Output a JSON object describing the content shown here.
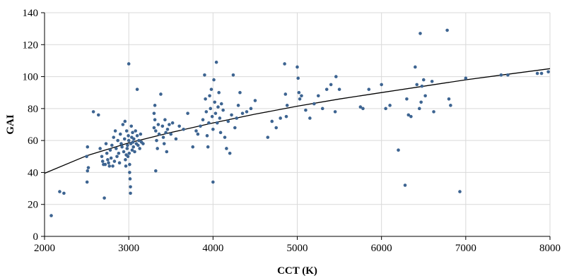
{
  "chart_data": {
    "type": "scatter",
    "xlabel": "CCT (K)",
    "ylabel": "GAI",
    "xlim": [
      2000,
      8000
    ],
    "ylim": [
      0,
      140
    ],
    "xticks": [
      2000,
      3000,
      4000,
      5000,
      6000,
      7000,
      8000
    ],
    "yticks": [
      0,
      20,
      40,
      60,
      80,
      100,
      120,
      140
    ],
    "grid": true,
    "legend": "none",
    "colors": {
      "points": "#3d6491",
      "trendline": "#000000",
      "grid": "#d9d9d9"
    },
    "trendline": {
      "type": "curve",
      "x": [
        2000,
        2500,
        3000,
        3500,
        4000,
        4500,
        5000,
        5500,
        6000,
        6500,
        7000,
        7500,
        8000
      ],
      "y": [
        39.5,
        50.5,
        58.5,
        65,
        71,
        76.5,
        81.5,
        86,
        90,
        94,
        98,
        101.5,
        105
      ]
    },
    "series": [
      {
        "points": [
          [
            2080,
            13
          ],
          [
            2180,
            28
          ],
          [
            2230,
            27
          ],
          [
            2500,
            50
          ],
          [
            2510,
            56
          ],
          [
            2520,
            43
          ],
          [
            2510,
            41
          ],
          [
            2505,
            34
          ],
          [
            2580,
            78
          ],
          [
            2640,
            76
          ],
          [
            2660,
            55
          ],
          [
            2680,
            50
          ],
          [
            2690,
            47
          ],
          [
            2700,
            45
          ],
          [
            2710,
            24
          ],
          [
            2720,
            45
          ],
          [
            2730,
            58
          ],
          [
            2740,
            52
          ],
          [
            2750,
            48
          ],
          [
            2760,
            46
          ],
          [
            2770,
            44
          ],
          [
            2780,
            54
          ],
          [
            2790,
            49
          ],
          [
            2800,
            57
          ],
          [
            2810,
            44
          ],
          [
            2820,
            62
          ],
          [
            2830,
            47
          ],
          [
            2840,
            66
          ],
          [
            2850,
            55
          ],
          [
            2860,
            50
          ],
          [
            2870,
            60
          ],
          [
            2880,
            52
          ],
          [
            2890,
            46
          ],
          [
            2900,
            64
          ],
          [
            2910,
            58
          ],
          [
            2920,
            56
          ],
          [
            2930,
            70
          ],
          [
            2940,
            53
          ],
          [
            2950,
            61
          ],
          [
            2955,
            72
          ],
          [
            2960,
            48
          ],
          [
            2965,
            44
          ],
          [
            2970,
            51
          ],
          [
            2975,
            66
          ],
          [
            2980,
            55
          ],
          [
            2985,
            57
          ],
          [
            2990,
            50
          ],
          [
            2995,
            63
          ],
          [
            3000,
            108
          ],
          [
            3000,
            60
          ],
          [
            3005,
            52
          ],
          [
            3010,
            45
          ],
          [
            3010,
            40
          ],
          [
            3015,
            36
          ],
          [
            3020,
            27
          ],
          [
            3020,
            31
          ],
          [
            3025,
            58
          ],
          [
            3030,
            69
          ],
          [
            3035,
            62
          ],
          [
            3040,
            54
          ],
          [
            3045,
            65
          ],
          [
            3050,
            59
          ],
          [
            3055,
            56
          ],
          [
            3060,
            61
          ],
          [
            3070,
            53
          ],
          [
            3080,
            66
          ],
          [
            3090,
            58
          ],
          [
            3100,
            63
          ],
          [
            3100,
            92
          ],
          [
            3110,
            57
          ],
          [
            3120,
            60
          ],
          [
            3130,
            55
          ],
          [
            3140,
            64
          ],
          [
            3150,
            59
          ],
          [
            3170,
            58
          ],
          [
            3300,
            68
          ],
          [
            3300,
            77
          ],
          [
            3310,
            82
          ],
          [
            3310,
            73
          ],
          [
            3320,
            66
          ],
          [
            3320,
            41
          ],
          [
            3330,
            60
          ],
          [
            3340,
            55
          ],
          [
            3350,
            70
          ],
          [
            3360,
            64
          ],
          [
            3380,
            89
          ],
          [
            3400,
            69
          ],
          [
            3410,
            62
          ],
          [
            3420,
            58
          ],
          [
            3430,
            73
          ],
          [
            3440,
            65
          ],
          [
            3450,
            53
          ],
          [
            3460,
            67
          ],
          [
            3480,
            70
          ],
          [
            3500,
            64
          ],
          [
            3520,
            71
          ],
          [
            3560,
            61
          ],
          [
            3600,
            69
          ],
          [
            3650,
            67
          ],
          [
            3700,
            77
          ],
          [
            3760,
            56
          ],
          [
            3800,
            66
          ],
          [
            3820,
            64
          ],
          [
            3850,
            69
          ],
          [
            3880,
            73
          ],
          [
            3900,
            101
          ],
          [
            3910,
            86
          ],
          [
            3920,
            78
          ],
          [
            3930,
            63
          ],
          [
            3940,
            56
          ],
          [
            3950,
            71
          ],
          [
            3960,
            88
          ],
          [
            3970,
            80
          ],
          [
            3980,
            92
          ],
          [
            3990,
            75
          ],
          [
            4000,
            67
          ],
          [
            4000,
            34
          ],
          [
            4010,
            98
          ],
          [
            4020,
            84
          ],
          [
            4030,
            77
          ],
          [
            4040,
            109
          ],
          [
            4050,
            71
          ],
          [
            4060,
            81
          ],
          [
            4070,
            90
          ],
          [
            4080,
            74
          ],
          [
            4090,
            65
          ],
          [
            4100,
            83
          ],
          [
            4120,
            79
          ],
          [
            4140,
            62
          ],
          [
            4160,
            55
          ],
          [
            4180,
            72
          ],
          [
            4200,
            52
          ],
          [
            4220,
            76
          ],
          [
            4240,
            101
          ],
          [
            4260,
            68
          ],
          [
            4280,
            74
          ],
          [
            4300,
            82
          ],
          [
            4320,
            90
          ],
          [
            4350,
            77
          ],
          [
            4400,
            78
          ],
          [
            4450,
            80
          ],
          [
            4500,
            85
          ],
          [
            4650,
            62
          ],
          [
            4700,
            72
          ],
          [
            4750,
            68
          ],
          [
            4800,
            74
          ],
          [
            4850,
            108
          ],
          [
            4860,
            89
          ],
          [
            4870,
            75
          ],
          [
            4880,
            82
          ],
          [
            5000,
            106
          ],
          [
            5010,
            99
          ],
          [
            5020,
            90
          ],
          [
            5030,
            86
          ],
          [
            5050,
            88
          ],
          [
            5100,
            79
          ],
          [
            5150,
            74
          ],
          [
            5200,
            83
          ],
          [
            5250,
            88
          ],
          [
            5300,
            80
          ],
          [
            5350,
            92
          ],
          [
            5400,
            95
          ],
          [
            5450,
            78
          ],
          [
            5460,
            100
          ],
          [
            5500,
            92
          ],
          [
            5750,
            81
          ],
          [
            5780,
            80
          ],
          [
            5850,
            92
          ],
          [
            6000,
            95
          ],
          [
            6050,
            80
          ],
          [
            6100,
            82
          ],
          [
            6200,
            54
          ],
          [
            6280,
            32
          ],
          [
            6300,
            86
          ],
          [
            6320,
            76
          ],
          [
            6350,
            75
          ],
          [
            6400,
            106
          ],
          [
            6420,
            95
          ],
          [
            6450,
            80
          ],
          [
            6460,
            127
          ],
          [
            6470,
            84
          ],
          [
            6480,
            94
          ],
          [
            6500,
            98
          ],
          [
            6520,
            88
          ],
          [
            6600,
            97
          ],
          [
            6620,
            78
          ],
          [
            6780,
            129
          ],
          [
            6800,
            86
          ],
          [
            6820,
            82
          ],
          [
            6930,
            28
          ],
          [
            7000,
            99
          ],
          [
            7420,
            101
          ],
          [
            7500,
            101
          ],
          [
            7850,
            102
          ],
          [
            7900,
            102
          ],
          [
            7980,
            103
          ]
        ]
      }
    ]
  }
}
